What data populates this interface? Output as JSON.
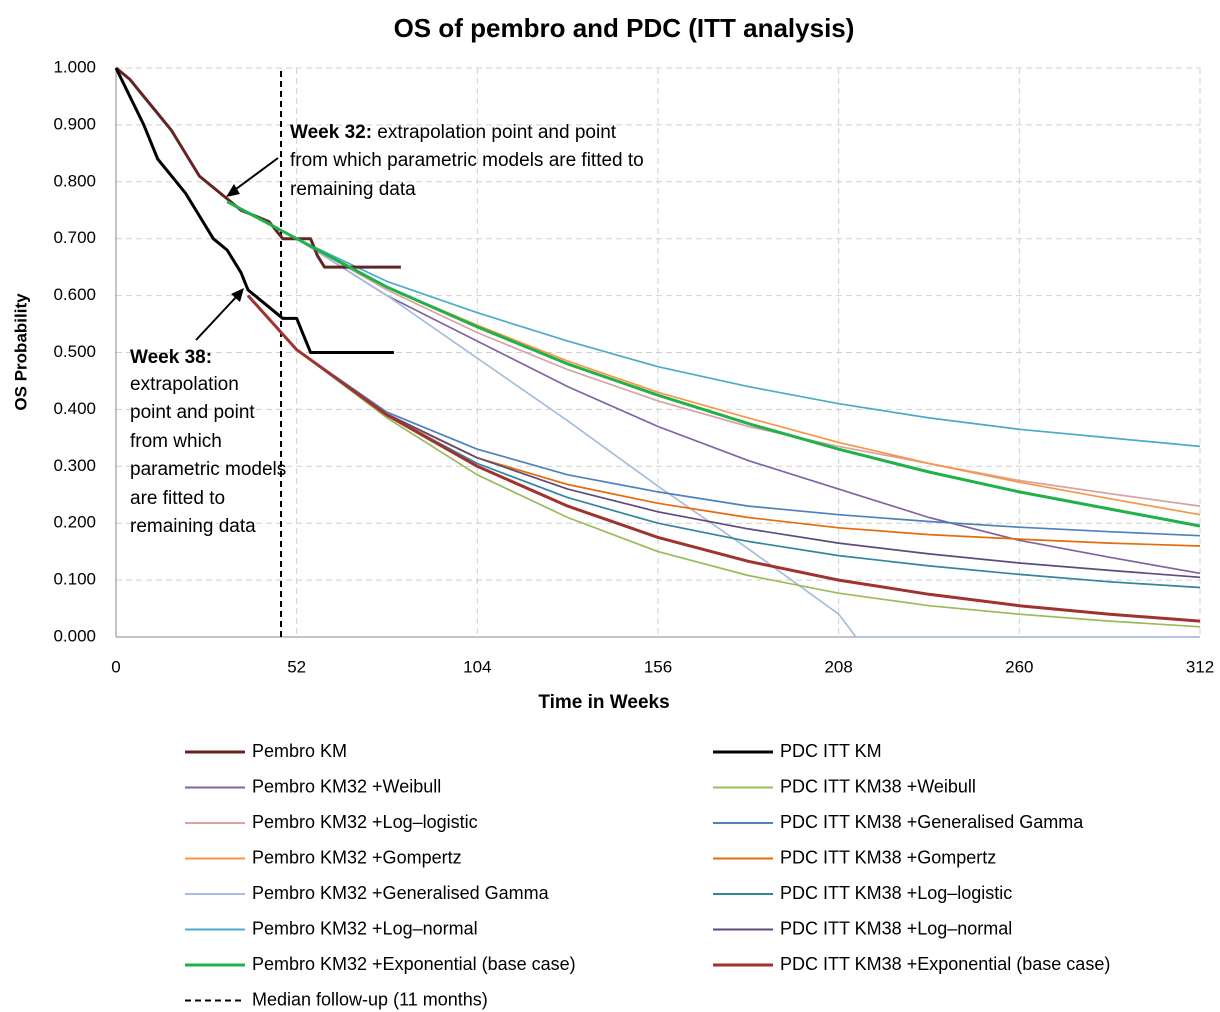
{
  "chart_data": {
    "type": "line",
    "title": "OS of pembro and PDC (ITT analysis)",
    "x_label": "Time in Weeks",
    "y_label": "OS Probability",
    "xlim": [
      0,
      312
    ],
    "ylim": [
      0,
      1
    ],
    "xticks": [
      0,
      52,
      104,
      156,
      208,
      260,
      312
    ],
    "yticks": [
      {
        "value": 0,
        "label": "0.000"
      },
      {
        "value": 0.1,
        "label": "0.100"
      },
      {
        "value": 0.2,
        "label": "0.200"
      },
      {
        "value": 0.3,
        "label": "0.300"
      },
      {
        "value": 0.4,
        "label": "0.400"
      },
      {
        "value": 0.5,
        "label": "0.500"
      },
      {
        "value": 0.6,
        "label": "0.600"
      },
      {
        "value": 0.7,
        "label": "0.700"
      },
      {
        "value": 0.8,
        "label": "0.800"
      },
      {
        "value": 0.9,
        "label": "0.900"
      },
      {
        "value": 1,
        "label": "1.000"
      }
    ],
    "grid": true,
    "annotations": [
      {
        "heading": "Week 32:",
        "lines": [
          " extrapolation point and point",
          "from which parametric models are fitted to",
          "remaining data"
        ]
      },
      {
        "heading": "Week 38:",
        "lines": [
          "extrapolation",
          "point and point",
          "from which",
          "parametric models",
          "are fitted to",
          "remaining data"
        ]
      }
    ],
    "series": [
      {
        "name": "Pembro KM",
        "color": "#632523",
        "thick": true,
        "x": [
          0,
          4,
          8,
          12,
          16,
          20,
          24,
          28,
          32,
          36,
          40,
          44,
          48,
          52,
          56,
          58,
          60,
          70,
          82
        ],
        "values": [
          1,
          0.98,
          0.95,
          0.92,
          0.89,
          0.85,
          0.81,
          0.79,
          0.77,
          0.75,
          0.74,
          0.73,
          0.7,
          0.7,
          0.7,
          0.67,
          0.65,
          0.65,
          0.65
        ]
      },
      {
        "name": "Pembro KM32 +Weibull",
        "color": "#8064a2",
        "x": [
          32,
          52,
          78,
          104,
          130,
          156,
          182,
          208,
          234,
          260,
          286,
          312
        ],
        "values": [
          0.765,
          0.7,
          0.6,
          0.52,
          0.44,
          0.37,
          0.31,
          0.26,
          0.21,
          0.17,
          0.14,
          0.112
        ]
      },
      {
        "name": "Pembro KM32 +Log–logistic",
        "color": "#d9a3a3",
        "x": [
          32,
          52,
          78,
          104,
          130,
          156,
          182,
          208,
          234,
          260,
          286,
          312
        ],
        "values": [
          0.765,
          0.7,
          0.61,
          0.535,
          0.47,
          0.415,
          0.37,
          0.335,
          0.305,
          0.275,
          0.252,
          0.23
        ]
      },
      {
        "name": "Pembro KM32 +Gompertz",
        "color": "#f79646",
        "x": [
          32,
          52,
          78,
          104,
          130,
          156,
          182,
          208,
          234,
          260,
          286,
          312
        ],
        "values": [
          0.765,
          0.7,
          0.615,
          0.548,
          0.485,
          0.43,
          0.385,
          0.342,
          0.305,
          0.272,
          0.243,
          0.215
        ]
      },
      {
        "name": "Pembro KM32 +Generalised Gamma",
        "color": "#a6bddb",
        "x": [
          32,
          52,
          78,
          104,
          130,
          156,
          182,
          208,
          213,
          234,
          260,
          286,
          312
        ],
        "values": [
          0.765,
          0.7,
          0.6,
          0.49,
          0.38,
          0.265,
          0.155,
          0.04,
          0,
          0,
          0,
          0,
          0
        ]
      },
      {
        "name": "Pembro KM32 +Log–normal",
        "color": "#4bacc6",
        "x": [
          32,
          52,
          78,
          104,
          130,
          156,
          182,
          208,
          234,
          260,
          286,
          312
        ],
        "values": [
          0.765,
          0.7,
          0.625,
          0.57,
          0.52,
          0.475,
          0.44,
          0.41,
          0.385,
          0.365,
          0.35,
          0.335
        ]
      },
      {
        "name": "Pembro KM32 +Exponential (base case)",
        "color": "#22b04a",
        "thick": true,
        "x": [
          32,
          52,
          78,
          104,
          130,
          156,
          182,
          208,
          234,
          260,
          286,
          312
        ],
        "values": [
          0.765,
          0.7,
          0.615,
          0.545,
          0.48,
          0.425,
          0.375,
          0.33,
          0.29,
          0.255,
          0.225,
          0.195
        ]
      },
      {
        "name": "Median follow-up (11 months)",
        "color": "#000000",
        "dash": true,
        "x": [
          47.5,
          47.5
        ],
        "values": [
          0,
          1
        ]
      },
      {
        "name": "PDC ITT KM",
        "color": "#000000",
        "thick": true,
        "x": [
          0,
          4,
          8,
          12,
          16,
          20,
          24,
          28,
          32,
          36,
          38,
          42,
          46,
          48,
          52,
          54,
          56,
          80
        ],
        "values": [
          1,
          0.95,
          0.9,
          0.84,
          0.81,
          0.78,
          0.74,
          0.7,
          0.68,
          0.64,
          0.61,
          0.59,
          0.57,
          0.56,
          0.56,
          0.53,
          0.5,
          0.5
        ]
      },
      {
        "name": "PDC ITT KM38 +Weibull",
        "color": "#9bbb59",
        "x": [
          38,
          52,
          78,
          104,
          130,
          156,
          182,
          208,
          234,
          260,
          286,
          312
        ],
        "values": [
          0.6,
          0.505,
          0.385,
          0.285,
          0.21,
          0.15,
          0.108,
          0.077,
          0.055,
          0.04,
          0.028,
          0.018
        ]
      },
      {
        "name": "PDC ITT KM38 +Generalised Gamma",
        "color": "#4f81bd",
        "x": [
          38,
          52,
          78,
          104,
          130,
          156,
          182,
          208,
          234,
          260,
          286,
          312
        ],
        "values": [
          0.6,
          0.505,
          0.395,
          0.33,
          0.285,
          0.255,
          0.23,
          0.215,
          0.203,
          0.193,
          0.185,
          0.178
        ]
      },
      {
        "name": "PDC ITT KM38 +Gompertz",
        "color": "#e46c0a",
        "x": [
          38,
          52,
          78,
          104,
          130,
          156,
          182,
          208,
          234,
          260,
          286,
          312
        ],
        "values": [
          0.6,
          0.505,
          0.39,
          0.315,
          0.268,
          0.235,
          0.21,
          0.192,
          0.18,
          0.172,
          0.165,
          0.16
        ]
      },
      {
        "name": "PDC ITT KM38 +Log–logistic",
        "color": "#31859c",
        "x": [
          38,
          52,
          78,
          104,
          130,
          156,
          182,
          208,
          234,
          260,
          286,
          312
        ],
        "values": [
          0.6,
          0.505,
          0.39,
          0.305,
          0.245,
          0.2,
          0.168,
          0.143,
          0.125,
          0.11,
          0.097,
          0.087
        ]
      },
      {
        "name": "PDC ITT KM38 +Log–normal",
        "color": "#604a7b",
        "x": [
          38,
          52,
          78,
          104,
          130,
          156,
          182,
          208,
          234,
          260,
          286,
          312
        ],
        "values": [
          0.6,
          0.505,
          0.392,
          0.315,
          0.26,
          0.22,
          0.19,
          0.165,
          0.146,
          0.13,
          0.117,
          0.105
        ]
      },
      {
        "name": "PDC ITT KM38 +Exponential (base case)",
        "color": "#a0322f",
        "thick": true,
        "x": [
          38,
          52,
          78,
          104,
          130,
          156,
          182,
          208,
          234,
          260,
          286,
          312
        ],
        "values": [
          0.6,
          0.505,
          0.39,
          0.3,
          0.23,
          0.175,
          0.133,
          0.1,
          0.075,
          0.055,
          0.04,
          0.028
        ]
      }
    ]
  }
}
